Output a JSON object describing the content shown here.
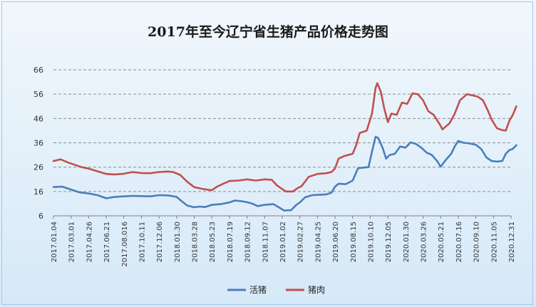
{
  "chart_data": {
    "type": "line",
    "title": "2017年至今辽宁省生猪产品价格走势图",
    "xlabel": "",
    "ylabel": "",
    "ylim": [
      6,
      66
    ],
    "yticks": [
      "6",
      "16",
      "26",
      "36",
      "46",
      "56",
      "66"
    ],
    "grid": "horizontal-dashed",
    "legend_position": "bottom",
    "x_tick_labels": [
      "2017.01.04",
      "2017.03.01",
      "2017.04.26",
      "2017.06.21",
      "2017.08.016",
      "2017.10.11",
      "2017.12.06",
      "2018.01.30",
      "2018.03.28",
      "2018.05.23",
      "2018.07.19",
      "2018.09.12",
      "2018.11.07",
      "2019.01.02",
      "2019.02.27",
      "2019.04.25",
      "2019.06.20",
      "2019.08.15",
      "2019.10.10",
      "2019.12.05",
      "2020.01.30",
      "2020.03.26",
      "2020.05.21",
      "2020.07.16",
      "2020.09.10",
      "2020.11.05",
      "2020.12.31"
    ],
    "series": [
      {
        "name": "活猪",
        "color": "#4a7ebb",
        "points": [
          [
            0,
            17.8
          ],
          [
            0.5,
            18.0
          ],
          [
            1.0,
            16.8
          ],
          [
            1.5,
            15.6
          ],
          [
            2.0,
            15.2
          ],
          [
            2.5,
            14.5
          ],
          [
            3.0,
            13.2
          ],
          [
            3.5,
            13.8
          ],
          [
            4.0,
            14.0
          ],
          [
            4.5,
            14.2
          ],
          [
            5.0,
            14.1
          ],
          [
            5.5,
            14.0
          ],
          [
            6.0,
            14.5
          ],
          [
            6.5,
            14.4
          ],
          [
            7.0,
            13.8
          ],
          [
            7.2,
            12.5
          ],
          [
            7.6,
            10.2
          ],
          [
            8.0,
            9.5
          ],
          [
            8.3,
            9.8
          ],
          [
            8.6,
            9.6
          ],
          [
            9.0,
            10.5
          ],
          [
            9.5,
            10.8
          ],
          [
            10.0,
            11.5
          ],
          [
            10.3,
            12.3
          ],
          [
            10.7,
            12.0
          ],
          [
            11.0,
            11.6
          ],
          [
            11.3,
            11.0
          ],
          [
            11.6,
            10.0
          ],
          [
            12.0,
            10.5
          ],
          [
            12.5,
            10.8
          ],
          [
            12.8,
            9.5
          ],
          [
            13.1,
            8.2
          ],
          [
            13.5,
            8.3
          ],
          [
            13.8,
            10.5
          ],
          [
            14.0,
            11.5
          ],
          [
            14.3,
            13.6
          ],
          [
            14.7,
            14.5
          ],
          [
            15.0,
            14.6
          ],
          [
            15.5,
            14.8
          ],
          [
            15.8,
            15.5
          ],
          [
            16.0,
            18.0
          ],
          [
            16.2,
            19.2
          ],
          [
            16.6,
            19.0
          ],
          [
            17.0,
            20.5
          ],
          [
            17.3,
            25.5
          ],
          [
            17.6,
            25.8
          ],
          [
            17.9,
            26.0
          ],
          [
            18.15,
            34.0
          ],
          [
            18.3,
            38.5
          ],
          [
            18.45,
            38.0
          ],
          [
            18.7,
            34.0
          ],
          [
            18.9,
            29.5
          ],
          [
            19.1,
            31.0
          ],
          [
            19.4,
            31.5
          ],
          [
            19.7,
            34.5
          ],
          [
            20.0,
            34.0
          ],
          [
            20.3,
            36.2
          ],
          [
            20.6,
            35.5
          ],
          [
            20.9,
            34.0
          ],
          [
            21.2,
            32.0
          ],
          [
            21.5,
            31.0
          ],
          [
            21.8,
            28.5
          ],
          [
            22.0,
            26.2
          ],
          [
            22.3,
            29.0
          ],
          [
            22.6,
            31.5
          ],
          [
            22.8,
            34.5
          ],
          [
            23.0,
            36.8
          ],
          [
            23.3,
            36.0
          ],
          [
            23.6,
            35.8
          ],
          [
            24.0,
            35.2
          ],
          [
            24.3,
            33.5
          ],
          [
            24.6,
            30.0
          ],
          [
            24.9,
            28.5
          ],
          [
            25.2,
            28.3
          ],
          [
            25.5,
            28.5
          ],
          [
            25.7,
            31.5
          ],
          [
            25.9,
            33.0
          ],
          [
            26.1,
            33.5
          ],
          [
            26.3,
            35.0
          ]
        ]
      },
      {
        "name": "猪肉",
        "color": "#c0504d",
        "points": [
          [
            0,
            28.5
          ],
          [
            0.4,
            29.2
          ],
          [
            0.8,
            28.0
          ],
          [
            1.2,
            27.0
          ],
          [
            1.6,
            26.0
          ],
          [
            2.0,
            25.4
          ],
          [
            2.5,
            24.3
          ],
          [
            3.0,
            23.2
          ],
          [
            3.5,
            23.0
          ],
          [
            4.0,
            23.3
          ],
          [
            4.5,
            24.0
          ],
          [
            5.0,
            23.6
          ],
          [
            5.5,
            23.5
          ],
          [
            6.0,
            24.0
          ],
          [
            6.5,
            24.2
          ],
          [
            6.8,
            24.0
          ],
          [
            7.2,
            22.8
          ],
          [
            7.6,
            20.0
          ],
          [
            8.0,
            17.8
          ],
          [
            8.5,
            17.0
          ],
          [
            9.0,
            16.5
          ],
          [
            9.3,
            18.0
          ],
          [
            9.6,
            19.0
          ],
          [
            10.0,
            20.3
          ],
          [
            10.5,
            20.5
          ],
          [
            11.0,
            21.0
          ],
          [
            11.5,
            20.5
          ],
          [
            12.0,
            21.0
          ],
          [
            12.4,
            20.8
          ],
          [
            12.7,
            18.5
          ],
          [
            13.0,
            17.0
          ],
          [
            13.2,
            16.0
          ],
          [
            13.6,
            16.0
          ],
          [
            13.9,
            17.5
          ],
          [
            14.1,
            18.2
          ],
          [
            14.5,
            22.0
          ],
          [
            15.0,
            23.2
          ],
          [
            15.5,
            23.5
          ],
          [
            15.8,
            24.0
          ],
          [
            16.0,
            25.5
          ],
          [
            16.2,
            29.5
          ],
          [
            16.5,
            30.5
          ],
          [
            17.0,
            31.5
          ],
          [
            17.2,
            35.0
          ],
          [
            17.4,
            40.0
          ],
          [
            17.8,
            41.0
          ],
          [
            18.1,
            48.0
          ],
          [
            18.3,
            58.5
          ],
          [
            18.4,
            60.5
          ],
          [
            18.6,
            57.0
          ],
          [
            18.8,
            50.0
          ],
          [
            19.0,
            44.5
          ],
          [
            19.2,
            48.0
          ],
          [
            19.5,
            47.5
          ],
          [
            19.8,
            52.5
          ],
          [
            20.1,
            52.0
          ],
          [
            20.4,
            56.3
          ],
          [
            20.7,
            56.0
          ],
          [
            21.0,
            53.5
          ],
          [
            21.3,
            49.0
          ],
          [
            21.6,
            47.5
          ],
          [
            22.0,
            43.0
          ],
          [
            22.1,
            41.5
          ],
          [
            22.5,
            44.0
          ],
          [
            22.8,
            48.0
          ],
          [
            23.1,
            53.5
          ],
          [
            23.5,
            56.0
          ],
          [
            23.8,
            55.5
          ],
          [
            24.1,
            55.0
          ],
          [
            24.4,
            53.5
          ],
          [
            24.7,
            49.0
          ],
          [
            24.9,
            45.5
          ],
          [
            25.2,
            42.0
          ],
          [
            25.5,
            41.2
          ],
          [
            25.7,
            41.0
          ],
          [
            25.9,
            45.0
          ],
          [
            26.1,
            47.5
          ],
          [
            26.3,
            51.0
          ]
        ]
      }
    ]
  }
}
